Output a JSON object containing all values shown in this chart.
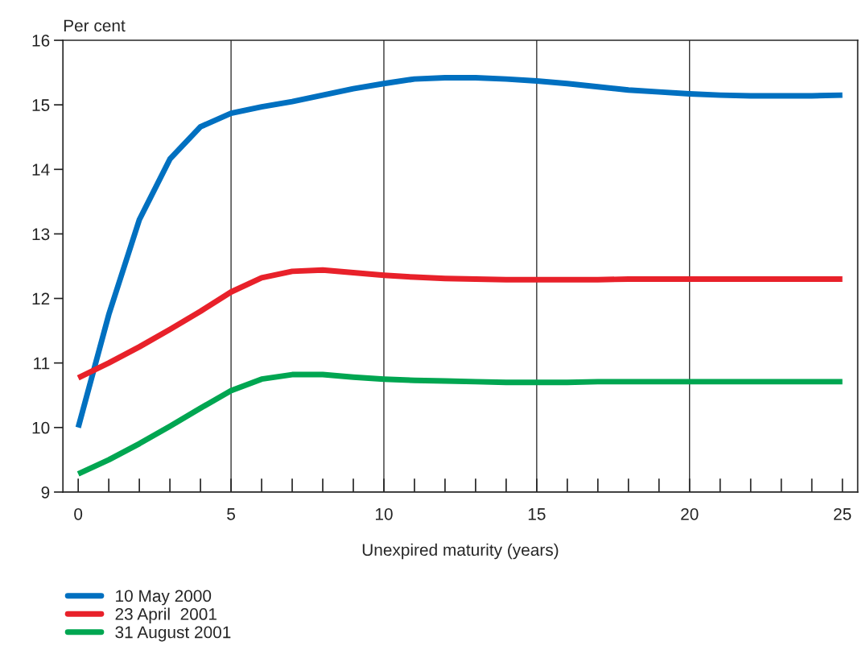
{
  "chart_data": {
    "type": "line",
    "ylabel": "Per cent",
    "xlabel": "Unexpired maturity (years)",
    "x": [
      0,
      1,
      2,
      3,
      4,
      5,
      6,
      7,
      8,
      9,
      10,
      11,
      12,
      13,
      14,
      15,
      16,
      17,
      18,
      19,
      20,
      21,
      22,
      23,
      24,
      25
    ],
    "series": [
      {
        "name": "10 May 2000",
        "color": "#0070c0",
        "values": [
          10.0,
          11.75,
          13.22,
          14.16,
          14.66,
          14.87,
          14.97,
          15.05,
          15.15,
          15.25,
          15.33,
          15.4,
          15.42,
          15.42,
          15.4,
          15.37,
          15.33,
          15.28,
          15.23,
          15.2,
          15.17,
          15.15,
          15.14,
          15.14,
          15.14,
          15.15
        ]
      },
      {
        "name": "23 April  2001",
        "color": "#e8212a",
        "values": [
          10.77,
          11.0,
          11.25,
          11.52,
          11.8,
          12.1,
          12.32,
          12.42,
          12.44,
          12.4,
          12.36,
          12.33,
          12.31,
          12.3,
          12.29,
          12.29,
          12.29,
          12.29,
          12.3,
          12.3,
          12.3,
          12.3,
          12.3,
          12.3,
          12.3,
          12.3
        ]
      },
      {
        "name": "31 August 2001",
        "color": "#00a651",
        "values": [
          9.28,
          9.5,
          9.75,
          10.02,
          10.3,
          10.57,
          10.75,
          10.82,
          10.82,
          10.78,
          10.75,
          10.73,
          10.72,
          10.71,
          10.7,
          10.7,
          10.7,
          10.71,
          10.71,
          10.71,
          10.71,
          10.71,
          10.71,
          10.71,
          10.71,
          10.71
        ]
      }
    ],
    "xlim": [
      -0.5,
      25.5
    ],
    "xticks": [
      0,
      5,
      10,
      15,
      20,
      25
    ],
    "ylim": [
      9,
      16
    ],
    "yticks": [
      9,
      10,
      11,
      12,
      13,
      14,
      15,
      16
    ],
    "ref_lines": [
      {
        "axis": "x",
        "value": 5,
        "color": "#000000"
      },
      {
        "axis": "x",
        "value": 10,
        "color": "#000000"
      },
      {
        "axis": "x",
        "value": 15,
        "color": "#000000"
      },
      {
        "axis": "x",
        "value": 20,
        "color": "#000000"
      }
    ],
    "grid": false,
    "legend": "bottom left",
    "marker": "none",
    "line_style": "solid"
  }
}
